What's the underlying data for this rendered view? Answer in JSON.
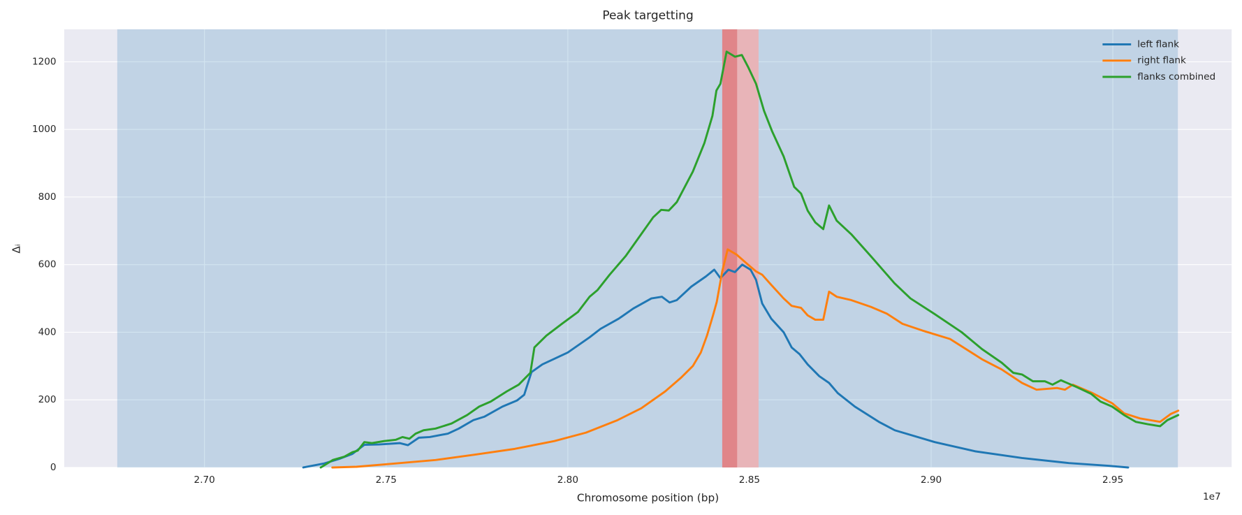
{
  "chart_data": {
    "type": "line",
    "title": "Peak targetting",
    "x_label": "Chromosome position (bp)",
    "y_label": "Δᵢ",
    "x_offset_label": "1e7",
    "xlim": [
      2.6614,
      2.9827
    ],
    "ylim": [
      0,
      1296
    ],
    "xticks": [
      {
        "value": 2.7,
        "label": "2.70"
      },
      2.75,
      {
        "value": 2.8,
        "label": "2.80"
      },
      2.85,
      {
        "value": 2.9,
        "label": "2.90"
      },
      2.95
    ],
    "yticks": [
      0,
      200,
      400,
      600,
      800,
      1000,
      1200
    ],
    "grid": true,
    "legend": "upper right",
    "spans": [
      {
        "x": [
          2.676,
          2.9679
        ],
        "color": "#1f77b4",
        "alpha": 0.2
      },
      {
        "x": [
          2.8425,
          2.8525
        ],
        "color": "#e8b4b8",
        "alpha": 1
      },
      {
        "x": [
          2.8425,
          2.8466
        ],
        "color": "#e08589",
        "alpha": 1
      }
    ],
    "series": [
      {
        "name": "left flank",
        "color": "#1f77b4",
        "x": [
          2.7272,
          2.733,
          2.737,
          2.7407,
          2.744,
          2.748,
          2.7538,
          2.756,
          2.759,
          2.762,
          2.767,
          2.77,
          2.774,
          2.777,
          2.782,
          2.786,
          2.788,
          2.79,
          2.793,
          2.796,
          2.8,
          2.806,
          2.809,
          2.814,
          2.818,
          2.823,
          2.8259,
          2.828,
          2.83,
          2.834,
          2.838,
          2.8403,
          2.842,
          2.8442,
          2.846,
          2.848,
          2.8503,
          2.8518,
          2.8535,
          2.856,
          2.8594,
          2.8616,
          2.8638,
          2.866,
          2.8692,
          2.8719,
          2.8743,
          2.879,
          2.8856,
          2.89,
          2.901,
          2.912,
          2.925,
          2.9379,
          2.9488,
          2.9542
        ],
        "values": [
          0,
          12,
          25,
          40,
          67,
          68,
          72,
          66,
          88,
          90,
          100,
          115,
          140,
          150,
          180,
          198,
          215,
          282,
          305,
          320,
          340,
          385,
          410,
          440,
          470,
          500,
          505,
          488,
          495,
          535,
          565,
          585,
          560,
          585,
          578,
          600,
          585,
          555,
          485,
          440,
          400,
          355,
          335,
          305,
          270,
          250,
          220,
          180,
          135,
          110,
          75,
          48,
          28,
          13,
          5,
          0
        ]
      },
      {
        "name": "right flank",
        "color": "#ff7f0e",
        "x": [
          2.7352,
          2.7418,
          2.7527,
          2.7636,
          2.7745,
          2.7854,
          2.7963,
          2.805,
          2.8137,
          2.8202,
          2.8268,
          2.8311,
          2.8344,
          2.8366,
          2.8383,
          2.8401,
          2.841,
          2.8425,
          2.844,
          2.8464,
          2.8496,
          2.8518,
          2.8535,
          2.856,
          2.8594,
          2.8616,
          2.8642,
          2.866,
          2.8681,
          2.8703,
          2.8719,
          2.874,
          2.878,
          2.8834,
          2.8878,
          2.8921,
          2.8976,
          2.9052,
          2.914,
          2.9194,
          2.925,
          2.929,
          2.9347,
          2.9368,
          2.939,
          2.9444,
          2.9498,
          2.9531,
          2.9575,
          2.963,
          2.9659,
          2.968
        ],
        "values": [
          0,
          2,
          12,
          22,
          38,
          55,
          78,
          103,
          140,
          175,
          225,
          265,
          300,
          340,
          390,
          455,
          490,
          580,
          645,
          630,
          600,
          580,
          570,
          540,
          500,
          478,
          472,
          450,
          437,
          437,
          520,
          505,
          495,
          475,
          455,
          425,
          405,
          380,
          320,
          290,
          250,
          230,
          235,
          230,
          245,
          220,
          190,
          160,
          145,
          135,
          158,
          168
        ]
      },
      {
        "name": "flanks combined",
        "color": "#2ca02c",
        "x": [
          2.732,
          2.7353,
          2.7385,
          2.7407,
          2.7422,
          2.744,
          2.7461,
          2.7494,
          2.7527,
          2.7545,
          2.7564,
          2.7581,
          2.7603,
          2.7636,
          2.768,
          2.7723,
          2.7756,
          2.7788,
          2.7832,
          2.7865,
          2.7897,
          2.7908,
          2.7941,
          2.7984,
          2.8028,
          2.806,
          2.8082,
          2.8115,
          2.8159,
          2.8202,
          2.8235,
          2.8257,
          2.8278,
          2.83,
          2.8344,
          2.8376,
          2.8398,
          2.8409,
          2.842,
          2.8437,
          2.846,
          2.8479,
          2.8496,
          2.8518,
          2.854,
          2.8562,
          2.8594,
          2.8623,
          2.8642,
          2.866,
          2.8681,
          2.8703,
          2.8719,
          2.874,
          2.878,
          2.8834,
          2.8899,
          2.8943,
          2.9008,
          2.9084,
          2.914,
          2.9194,
          2.9226,
          2.925,
          2.928,
          2.9313,
          2.9334,
          2.9357,
          2.94,
          2.944,
          2.9466,
          2.9498,
          2.9531,
          2.9563,
          2.9596,
          2.963,
          2.965,
          2.968
        ],
        "values": [
          0,
          22,
          32,
          45,
          50,
          75,
          72,
          78,
          82,
          90,
          85,
          100,
          110,
          115,
          130,
          155,
          180,
          195,
          225,
          245,
          280,
          355,
          390,
          425,
          460,
          505,
          525,
          570,
          625,
          690,
          740,
          762,
          760,
          785,
          875,
          960,
          1040,
          1115,
          1135,
          1230,
          1215,
          1220,
          1185,
          1135,
          1055,
          995,
          920,
          830,
          810,
          760,
          725,
          705,
          775,
          730,
          690,
          625,
          545,
          500,
          455,
          400,
          350,
          310,
          280,
          275,
          255,
          255,
          245,
          258,
          238,
          218,
          195,
          180,
          155,
          135,
          128,
          122,
          140,
          155
        ]
      }
    ]
  }
}
